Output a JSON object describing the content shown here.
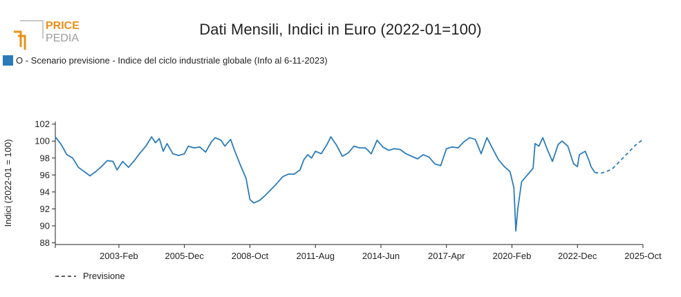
{
  "logo": {
    "line1": "PRICE",
    "line2": "PEDIA",
    "color_top": "#e8901a",
    "color_bottom": "#9a9a9a"
  },
  "colors": {
    "series": "#2b7bb9",
    "axis": "#222222"
  },
  "chart_data": {
    "type": "line",
    "title": "Dati Mensili, Indici in Euro (2022-01=100)",
    "ylabel": "Indici (2022-01 = 100)",
    "xlabel": "",
    "ylim": [
      87.8,
      102.3
    ],
    "xlim": [
      "2000-05",
      "2025-10"
    ],
    "yticks": [
      88,
      90,
      92,
      94,
      96,
      98,
      100,
      102
    ],
    "xticks": [
      {
        "date": "2003-02",
        "label": "2003-Feb"
      },
      {
        "date": "2005-12",
        "label": "2005-Dec"
      },
      {
        "date": "2008-10",
        "label": "2008-Oct"
      },
      {
        "date": "2011-08",
        "label": "2011-Aug"
      },
      {
        "date": "2014-06",
        "label": "2014-Jun"
      },
      {
        "date": "2017-04",
        "label": "2017-Apr"
      },
      {
        "date": "2020-02",
        "label": "2020-Feb"
      },
      {
        "date": "2022-12",
        "label": "2022-Dec"
      },
      {
        "date": "2025-10",
        "label": "2025-Oct"
      }
    ],
    "grid": false,
    "legend_position": "top-left",
    "series": [
      {
        "name": "O - Scenario previsione - Indice del ciclo industriale globale (Info al 6-11-2023)",
        "style": "solid",
        "points": [
          [
            "2000-05",
            100.5
          ],
          [
            "2000-08",
            99.6
          ],
          [
            "2000-11",
            98.4
          ],
          [
            "2001-02",
            98.0
          ],
          [
            "2001-05",
            96.9
          ],
          [
            "2001-08",
            96.4
          ],
          [
            "2001-11",
            95.9
          ],
          [
            "2002-02",
            96.4
          ],
          [
            "2002-05",
            97.0
          ],
          [
            "2002-08",
            97.7
          ],
          [
            "2002-11",
            97.6
          ],
          [
            "2003-01",
            96.6
          ],
          [
            "2003-04",
            97.6
          ],
          [
            "2003-07",
            96.9
          ],
          [
            "2003-10",
            97.7
          ],
          [
            "2004-01",
            98.6
          ],
          [
            "2004-04",
            99.4
          ],
          [
            "2004-07",
            100.5
          ],
          [
            "2004-09",
            99.8
          ],
          [
            "2004-11",
            100.3
          ],
          [
            "2005-01",
            98.8
          ],
          [
            "2005-03",
            99.7
          ],
          [
            "2005-06",
            98.5
          ],
          [
            "2005-09",
            98.3
          ],
          [
            "2005-12",
            98.5
          ],
          [
            "2006-02",
            99.4
          ],
          [
            "2006-05",
            99.2
          ],
          [
            "2006-08",
            99.3
          ],
          [
            "2006-11",
            98.7
          ],
          [
            "2007-02",
            99.9
          ],
          [
            "2007-04",
            100.4
          ],
          [
            "2007-07",
            100.1
          ],
          [
            "2007-09",
            99.4
          ],
          [
            "2007-12",
            100.2
          ],
          [
            "2008-02",
            98.9
          ],
          [
            "2008-05",
            97.2
          ],
          [
            "2008-08",
            95.6
          ],
          [
            "2008-10",
            93.1
          ],
          [
            "2008-12",
            92.7
          ],
          [
            "2009-03",
            93.0
          ],
          [
            "2009-06",
            93.6
          ],
          [
            "2009-09",
            94.3
          ],
          [
            "2009-12",
            95.0
          ],
          [
            "2010-03",
            95.8
          ],
          [
            "2010-06",
            96.1
          ],
          [
            "2010-09",
            96.1
          ],
          [
            "2010-12",
            96.6
          ],
          [
            "2011-02",
            97.8
          ],
          [
            "2011-04",
            98.4
          ],
          [
            "2011-06",
            98.0
          ],
          [
            "2011-08",
            98.8
          ],
          [
            "2011-11",
            98.5
          ],
          [
            "2012-02",
            99.6
          ],
          [
            "2012-04",
            100.5
          ],
          [
            "2012-07",
            99.5
          ],
          [
            "2012-10",
            98.2
          ],
          [
            "2013-01",
            98.6
          ],
          [
            "2013-04",
            99.4
          ],
          [
            "2013-07",
            99.2
          ],
          [
            "2013-10",
            99.2
          ],
          [
            "2014-01",
            98.5
          ],
          [
            "2014-04",
            100.1
          ],
          [
            "2014-07",
            99.3
          ],
          [
            "2014-10",
            98.9
          ],
          [
            "2015-01",
            99.1
          ],
          [
            "2015-04",
            99.0
          ],
          [
            "2015-07",
            98.5
          ],
          [
            "2015-10",
            98.2
          ],
          [
            "2016-01",
            97.9
          ],
          [
            "2016-04",
            98.4
          ],
          [
            "2016-07",
            98.1
          ],
          [
            "2016-10",
            97.3
          ],
          [
            "2017-01",
            97.1
          ],
          [
            "2017-04",
            99.1
          ],
          [
            "2017-07",
            99.3
          ],
          [
            "2017-10",
            99.2
          ],
          [
            "2018-01",
            99.9
          ],
          [
            "2018-04",
            100.4
          ],
          [
            "2018-07",
            100.2
          ],
          [
            "2018-10",
            98.5
          ],
          [
            "2019-01",
            100.4
          ],
          [
            "2019-04",
            99.1
          ],
          [
            "2019-07",
            97.8
          ],
          [
            "2019-10",
            97.0
          ],
          [
            "2020-01",
            96.4
          ],
          [
            "2020-03",
            94.5
          ],
          [
            "2020-04",
            89.4
          ],
          [
            "2020-05",
            92.0
          ],
          [
            "2020-07",
            95.2
          ],
          [
            "2020-10",
            96.0
          ],
          [
            "2021-01",
            96.8
          ],
          [
            "2021-02",
            99.7
          ],
          [
            "2021-04",
            99.4
          ],
          [
            "2021-06",
            100.4
          ],
          [
            "2021-08",
            99.2
          ],
          [
            "2021-11",
            97.6
          ],
          [
            "2022-02",
            99.6
          ],
          [
            "2022-04",
            100.0
          ],
          [
            "2022-07",
            99.4
          ],
          [
            "2022-10",
            97.3
          ],
          [
            "2022-12",
            97.0
          ],
          [
            "2023-01",
            98.4
          ],
          [
            "2023-04",
            98.8
          ],
          [
            "2023-06",
            97.7
          ],
          [
            "2023-07",
            97.0
          ],
          [
            "2023-09",
            96.3
          ]
        ]
      },
      {
        "name": "Previsione",
        "style": "dashed",
        "points": [
          [
            "2023-09",
            96.3
          ],
          [
            "2023-12",
            96.2
          ],
          [
            "2024-03",
            96.4
          ],
          [
            "2024-06",
            96.7
          ],
          [
            "2024-09",
            97.4
          ],
          [
            "2024-12",
            98.1
          ],
          [
            "2025-03",
            98.8
          ],
          [
            "2025-06",
            99.5
          ],
          [
            "2025-10",
            100.2
          ]
        ]
      }
    ]
  }
}
